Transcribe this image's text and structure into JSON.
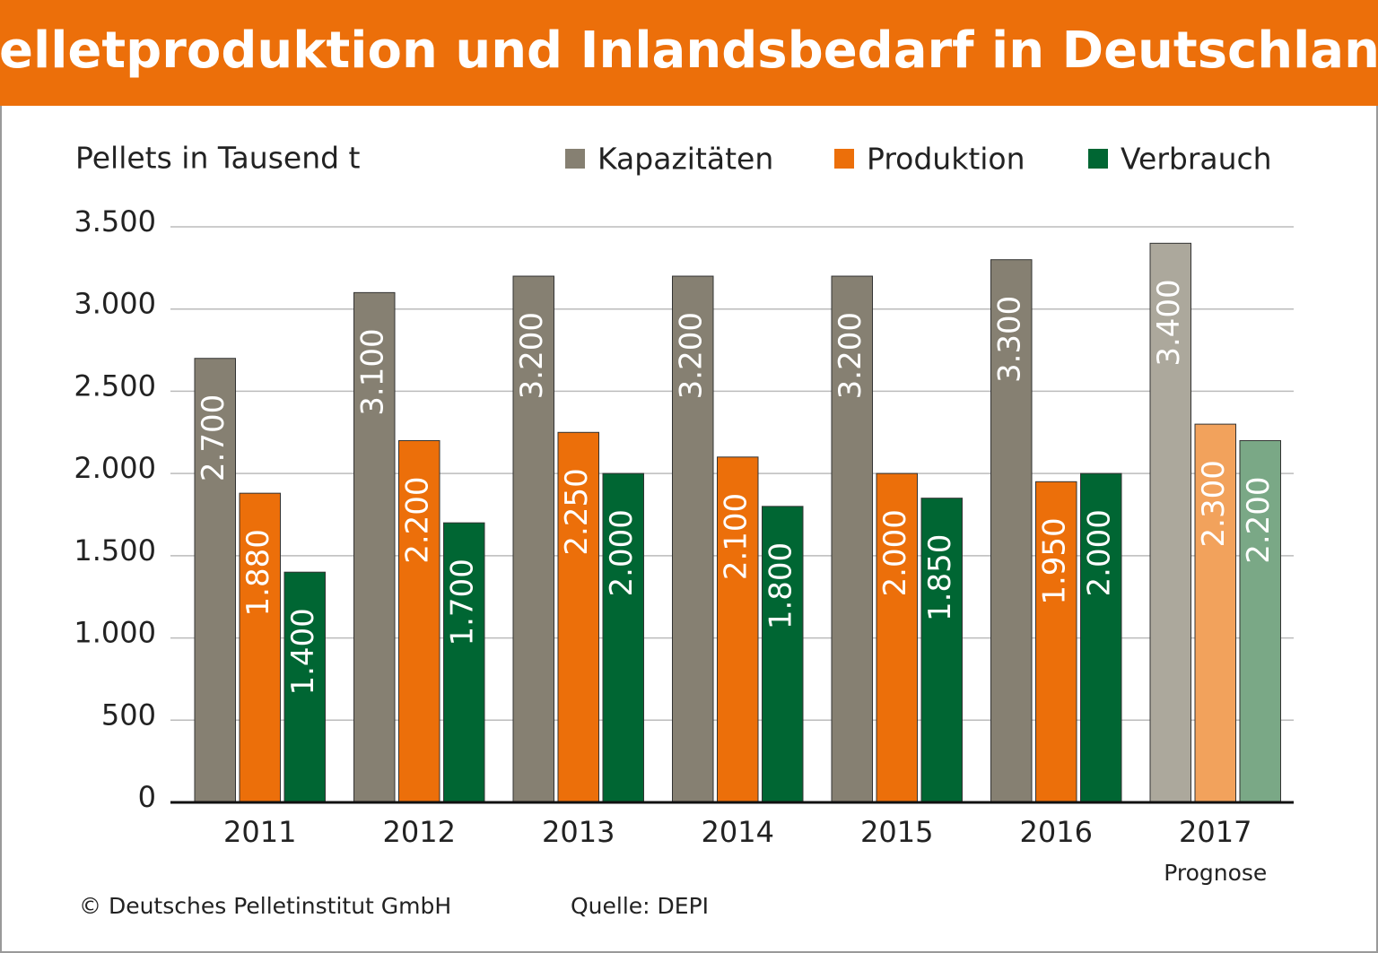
{
  "chart_data": {
    "type": "bar",
    "title": "Pelletproduktion und Inlandsbedarf in Deutschland",
    "y_label": "Pellets in Tausend t",
    "categories": [
      "2011",
      "2012",
      "2013",
      "2014",
      "2015",
      "2016",
      "2017"
    ],
    "x_sublabels": [
      null,
      null,
      null,
      null,
      null,
      null,
      "Prognose"
    ],
    "series": [
      {
        "name": "Kapazitäten",
        "color": "#868072",
        "colors": [
          "#868072",
          "#868072",
          "#868072",
          "#868072",
          "#868072",
          "#868072",
          "#aca89c"
        ],
        "values": [
          2700,
          3100,
          3200,
          3200,
          3200,
          3300,
          3400
        ],
        "value_labels": [
          "2.700",
          "3.100",
          "3.200",
          "3.200",
          "3.200",
          "3.300",
          "3.400"
        ]
      },
      {
        "name": "Produktion",
        "color": "#ec6f0a",
        "colors": [
          "#ec6f0a",
          "#ec6f0a",
          "#ec6f0a",
          "#ec6f0a",
          "#ec6f0a",
          "#ec6f0a",
          "#f2a25c"
        ],
        "values": [
          1880,
          2200,
          2250,
          2100,
          2000,
          1950,
          2300
        ],
        "value_labels": [
          "1.880",
          "2.200",
          "2.250",
          "2.100",
          "2.000",
          "1.950",
          "2.300"
        ]
      },
      {
        "name": "Verbrauch",
        "color": "#006633",
        "colors": [
          "#006633",
          "#006633",
          "#006633",
          "#006633",
          "#006633",
          "#006633",
          "#7aa886"
        ],
        "values": [
          1400,
          1700,
          2000,
          1800,
          1850,
          2000,
          2200
        ],
        "value_labels": [
          "1.400",
          "1.700",
          "2.000",
          "1.800",
          "1.850",
          "2.000",
          "2.200"
        ]
      }
    ],
    "ylim": [
      0,
      3500
    ],
    "yticks": [
      0,
      500,
      {
        "value": 1000,
        "label": "1.000"
      },
      {
        "value": 1500,
        "label": "1.500"
      },
      {
        "value": 2000,
        "label": "2.000"
      },
      {
        "value": 2500,
        "label": "2.500"
      },
      {
        "value": 3000,
        "label": "3.000"
      },
      {
        "value": 3500,
        "label": "3.500"
      }
    ],
    "grid": true,
    "footer_left": "© Deutsches Pelletinstitut GmbH",
    "footer_right": "Quelle: DEPI"
  }
}
